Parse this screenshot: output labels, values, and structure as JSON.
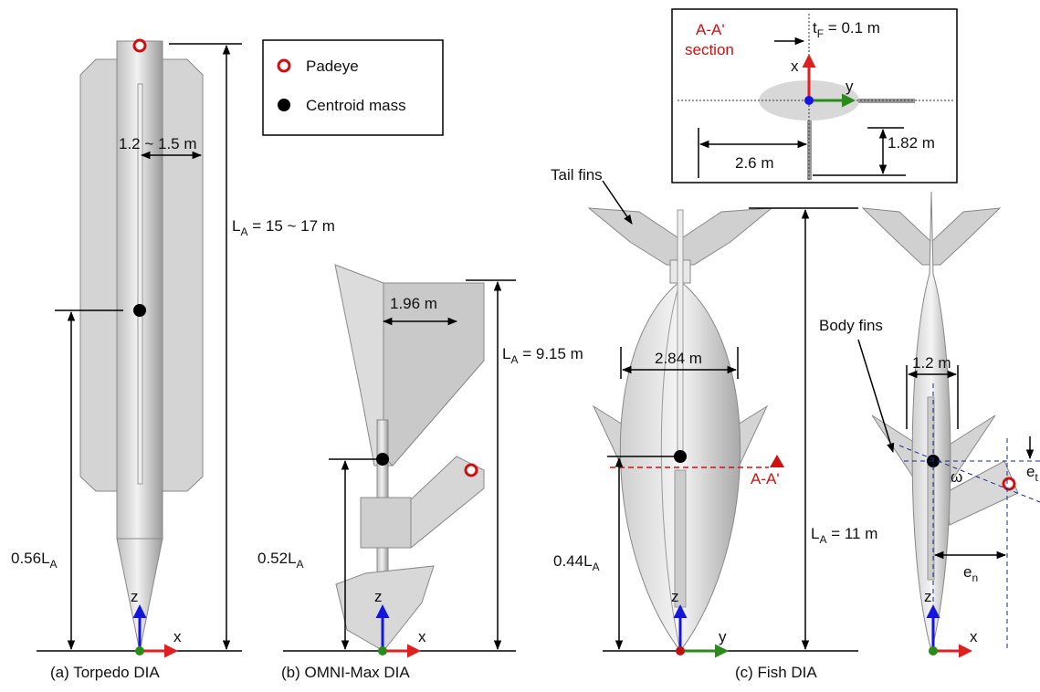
{
  "legend": {
    "padeye": "Padeye",
    "centroid": "Centroid mass"
  },
  "torpedo": {
    "caption": "(a) Torpedo DIA",
    "fin_width": "1.2 ~ 1.5 m",
    "length": [
      "L",
      "A",
      " = 15 ~ 17 m"
    ],
    "centroid": [
      "0.56L",
      "A"
    ],
    "axes": [
      "z",
      "x"
    ]
  },
  "omni_max": {
    "caption": "(b) OMNI-Max  DIA",
    "fin_width": "1.96 m",
    "length": [
      "L",
      "A",
      " = 9.15 m"
    ],
    "centroid": [
      "0.52L",
      "A"
    ],
    "axes": [
      "z",
      "x"
    ]
  },
  "fish": {
    "caption": "(c) Fish DIA",
    "tail_fins": "Tail fins",
    "body_fins": "Body fins",
    "width": "2.84 m",
    "section_mark": "A-A'",
    "centroid": [
      "0.44L",
      "A"
    ],
    "length": [
      "L",
      "A",
      " = 11 m"
    ],
    "side_width": "1.2 m",
    "angle": "ω",
    "e_n": [
      "e",
      "n"
    ],
    "e_t": [
      "e",
      "t"
    ],
    "front_axes": [
      "z",
      "y"
    ],
    "side_axes": [
      "z",
      "x"
    ]
  },
  "section": {
    "title": "A-A'",
    "subtitle": "section",
    "thickness": [
      "t",
      "F",
      " = 0.1 m"
    ],
    "axes": [
      "x",
      "y"
    ],
    "fin_height": "1.82 m",
    "fin_span": "2.6 m"
  }
}
